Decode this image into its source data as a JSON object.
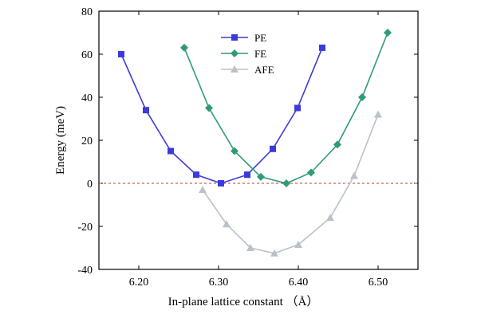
{
  "chart_data": {
    "type": "line",
    "xlabel": "In-plane lattice constant （Å）",
    "ylabel": "Energy (meV)",
    "xlim": [
      6.15,
      6.55
    ],
    "ylim": [
      -40,
      80
    ],
    "x_ticks": [
      "6.20",
      "6.30",
      "6.40",
      "6.50"
    ],
    "y_ticks": [
      "-40",
      "-20",
      "0",
      "20",
      "40",
      "60",
      "80"
    ],
    "reference_line": {
      "y": 0,
      "style": "dashed",
      "color": "#c0392b"
    },
    "legend_position": "top-center",
    "series": [
      {
        "name": "PE",
        "color": "#3b3bdb",
        "marker": "square",
        "points": [
          [
            6.178,
            60
          ],
          [
            6.209,
            34
          ],
          [
            6.24,
            15
          ],
          [
            6.272,
            4
          ],
          [
            6.303,
            0
          ],
          [
            6.336,
            4
          ],
          [
            6.368,
            16
          ],
          [
            6.399,
            35
          ],
          [
            6.43,
            63
          ]
        ]
      },
      {
        "name": "FE",
        "color": "#2e9a78",
        "marker": "diamond",
        "points": [
          [
            6.257,
            63
          ],
          [
            6.288,
            35
          ],
          [
            6.32,
            15
          ],
          [
            6.353,
            3
          ],
          [
            6.385,
            0
          ],
          [
            6.416,
            5
          ],
          [
            6.449,
            18
          ],
          [
            6.48,
            40
          ],
          [
            6.512,
            70
          ]
        ]
      },
      {
        "name": "AFE",
        "color": "#b8c2c8",
        "marker": "triangle",
        "points": [
          [
            6.28,
            -3
          ],
          [
            6.31,
            -19
          ],
          [
            6.34,
            -30
          ],
          [
            6.37,
            -32.5
          ],
          [
            6.4,
            -28.5
          ],
          [
            6.44,
            -16
          ],
          [
            6.47,
            3.5
          ],
          [
            6.5,
            32
          ]
        ]
      }
    ]
  }
}
